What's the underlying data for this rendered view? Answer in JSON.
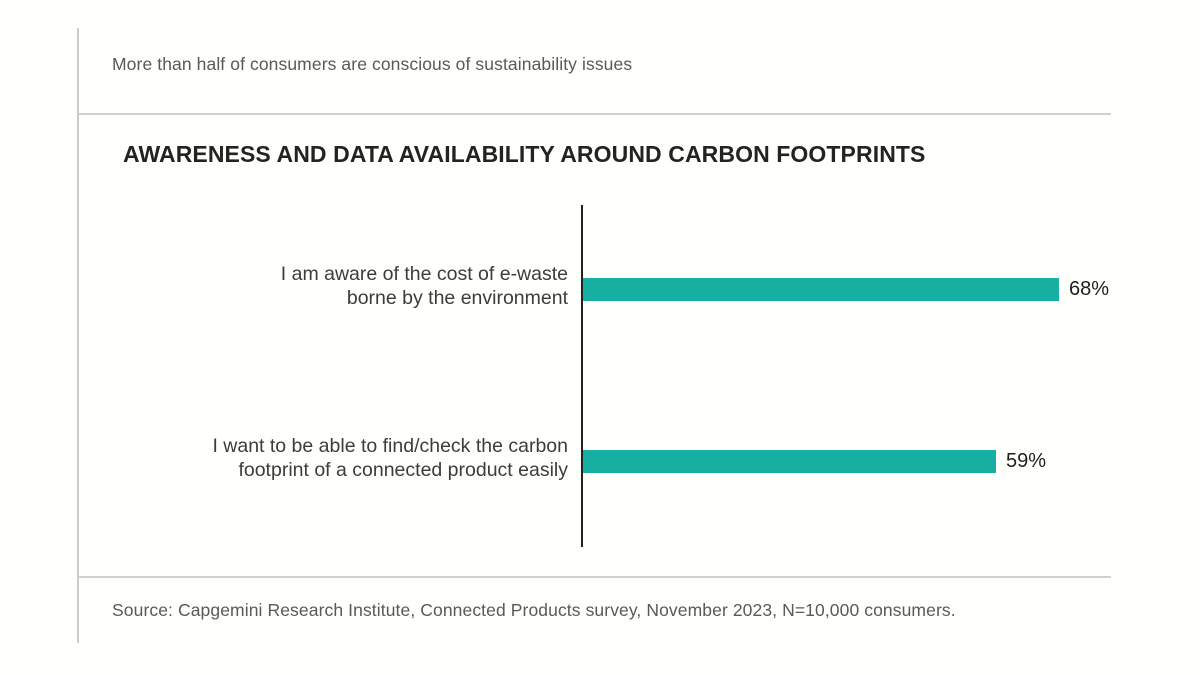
{
  "header": {
    "subtitle": "More than half of consumers are conscious of sustainability issues",
    "title": "AWARENESS AND DATA AVAILABILITY AROUND CARBON FOOTPRINTS"
  },
  "chart_data": {
    "type": "bar",
    "orientation": "horizontal",
    "title": "AWARENESS AND DATA AVAILABILITY AROUND CARBON FOOTPRINTS",
    "categories": [
      "I am aware of the cost of e-waste borne by the environment",
      "I want to be able to find/check the carbon footprint of a connected product easily"
    ],
    "categories_lines": [
      [
        "I am aware of the cost of e-waste",
        "borne by the environment"
      ],
      [
        "I want to be able to find/check the carbon",
        "footprint of a connected product easily"
      ]
    ],
    "values": [
      68,
      59
    ],
    "value_labels": [
      "68%",
      "59%"
    ],
    "xlim": [
      0,
      100
    ],
    "grid": false,
    "legend": "none",
    "bar_color": "#17AFA2"
  },
  "footer": {
    "source": "Source: Capgemini Research Institute, Connected Products survey, November 2023, N=10,000 consumers."
  },
  "colors": {
    "bar": "#17AFA2",
    "rule": "#CBCBCB",
    "axis": "#222222",
    "muted_text": "#595959",
    "title_text": "#232323",
    "label_text": "#3C3C3B",
    "background": "#FFFFFC"
  }
}
